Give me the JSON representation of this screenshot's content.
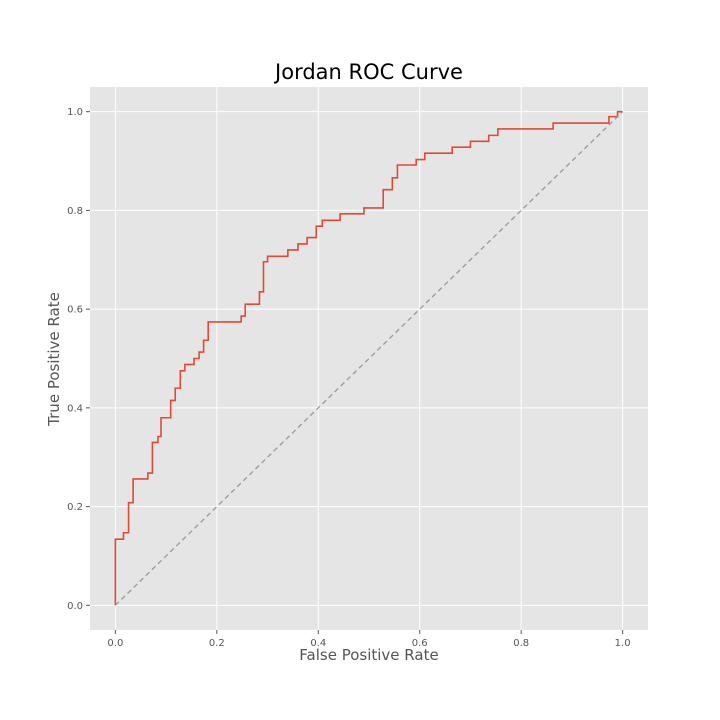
{
  "chart_data": {
    "type": "line",
    "title": "Jordan ROC Curve",
    "xlabel": "False Positive Rate",
    "ylabel": "True Positive Rate",
    "xlim": [
      -0.05,
      1.05
    ],
    "ylim": [
      -0.05,
      1.05
    ],
    "xticks": [
      "0.0",
      "0.2",
      "0.4",
      "0.6",
      "0.8",
      "1.0"
    ],
    "yticks": [
      "0.0",
      "0.2",
      "0.4",
      "0.6",
      "0.8",
      "1.0"
    ],
    "grid": true,
    "background": "#e5e5e5",
    "series": [
      {
        "color": "#e24a33",
        "style": "solid",
        "x": [
          0.0,
          0.0,
          0.016,
          0.016,
          0.026,
          0.026,
          0.035,
          0.035,
          0.064,
          0.064,
          0.073,
          0.073,
          0.084,
          0.084,
          0.09,
          0.09,
          0.109,
          0.109,
          0.118,
          0.118,
          0.128,
          0.128,
          0.137,
          0.137,
          0.155,
          0.155,
          0.165,
          0.165,
          0.174,
          0.174,
          0.183,
          0.183,
          0.248,
          0.248,
          0.256,
          0.256,
          0.284,
          0.284,
          0.292,
          0.292,
          0.3,
          0.3,
          0.34,
          0.34,
          0.36,
          0.36,
          0.378,
          0.378,
          0.396,
          0.396,
          0.408,
          0.408,
          0.443,
          0.443,
          0.49,
          0.49,
          0.528,
          0.528,
          0.546,
          0.546,
          0.556,
          0.556,
          0.593,
          0.593,
          0.61,
          0.61,
          0.664,
          0.664,
          0.7,
          0.7,
          0.736,
          0.736,
          0.754,
          0.754,
          0.863,
          0.863,
          0.973,
          0.973,
          0.99,
          0.99,
          1.0
        ],
        "y": [
          0.0,
          0.134,
          0.134,
          0.147,
          0.147,
          0.208,
          0.208,
          0.256,
          0.256,
          0.268,
          0.268,
          0.33,
          0.33,
          0.342,
          0.342,
          0.38,
          0.38,
          0.415,
          0.415,
          0.44,
          0.44,
          0.475,
          0.475,
          0.488,
          0.488,
          0.5,
          0.5,
          0.513,
          0.513,
          0.537,
          0.537,
          0.574,
          0.574,
          0.586,
          0.586,
          0.61,
          0.61,
          0.635,
          0.635,
          0.696,
          0.696,
          0.707,
          0.707,
          0.72,
          0.72,
          0.732,
          0.732,
          0.745,
          0.745,
          0.768,
          0.768,
          0.78,
          0.78,
          0.793,
          0.793,
          0.805,
          0.805,
          0.842,
          0.842,
          0.866,
          0.866,
          0.892,
          0.892,
          0.903,
          0.903,
          0.916,
          0.916,
          0.928,
          0.928,
          0.94,
          0.94,
          0.952,
          0.952,
          0.965,
          0.965,
          0.977,
          0.977,
          0.99,
          0.99,
          1.0,
          1.0
        ]
      },
      {
        "color": "#999999",
        "style": "dashed",
        "x": [
          0.0,
          1.0
        ],
        "y": [
          0.0,
          1.0
        ]
      }
    ]
  }
}
